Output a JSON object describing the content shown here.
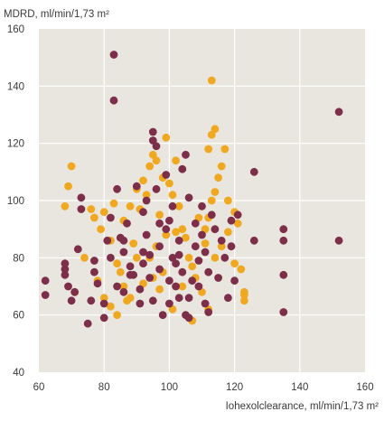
{
  "chart_data": {
    "type": "scatter",
    "title": "",
    "ylabel": "MDRD, ml/min/1,73 m²",
    "xlabel": "Iohexolclearance, ml/min/1,73 m²",
    "xlim": [
      60,
      160
    ],
    "ylim": [
      40,
      160
    ],
    "x_ticks": [
      "60",
      "80",
      "100",
      "120",
      "140",
      "160"
    ],
    "y_ticks": [
      "40",
      "60",
      "80",
      "100",
      "120",
      "140",
      "160"
    ],
    "grid": true,
    "background_color": "#e9e6df",
    "grid_color": "#ffffff",
    "series": [
      {
        "color": "#f0a820",
        "points": [
          [
            68,
            98
          ],
          [
            69,
            105
          ],
          [
            70,
            112
          ],
          [
            71,
            68
          ],
          [
            74,
            80
          ],
          [
            76,
            97
          ],
          [
            77,
            94
          ],
          [
            79,
            90
          ],
          [
            80,
            96
          ],
          [
            82,
            86
          ],
          [
            83,
            99
          ],
          [
            84,
            78
          ],
          [
            85,
            75
          ],
          [
            86,
            70
          ],
          [
            87,
            65
          ],
          [
            89,
            85
          ],
          [
            90,
            80
          ],
          [
            91,
            97
          ],
          [
            92,
            107
          ],
          [
            93,
            102
          ],
          [
            94,
            112
          ],
          [
            95,
            116
          ],
          [
            96,
            114
          ],
          [
            97,
            95
          ],
          [
            98,
            108
          ],
          [
            99,
            122
          ],
          [
            100,
            106
          ],
          [
            101,
            102
          ],
          [
            102,
            114
          ],
          [
            103,
            98
          ],
          [
            104,
            90
          ],
          [
            105,
            87
          ],
          [
            106,
            80
          ],
          [
            107,
            77
          ],
          [
            108,
            73
          ],
          [
            110,
            68
          ],
          [
            111,
            85
          ],
          [
            112,
            94
          ],
          [
            113,
            100
          ],
          [
            114,
            103
          ],
          [
            115,
            108
          ],
          [
            116,
            112
          ],
          [
            117,
            118
          ],
          [
            112,
            118
          ],
          [
            113,
            123
          ],
          [
            114,
            125
          ],
          [
            113,
            142
          ],
          [
            118,
            100
          ],
          [
            120,
            96
          ],
          [
            121,
            92
          ],
          [
            122,
            76
          ],
          [
            123,
            68
          ],
          [
            123,
            67
          ],
          [
            123,
            65
          ],
          [
            120,
            78
          ],
          [
            112,
            62
          ],
          [
            107,
            58
          ],
          [
            101,
            62
          ],
          [
            97,
            69
          ],
          [
            92,
            71
          ],
          [
            88,
            66
          ],
          [
            84,
            60
          ],
          [
            82,
            63
          ],
          [
            80,
            66
          ],
          [
            78,
            72
          ],
          [
            94,
            80
          ],
          [
            96,
            84
          ],
          [
            99,
            88
          ],
          [
            102,
            89
          ],
          [
            109,
            94
          ],
          [
            111,
            90
          ],
          [
            98,
            75
          ],
          [
            95,
            73
          ],
          [
            104,
            70
          ],
          [
            114,
            80
          ],
          [
            116,
            84
          ],
          [
            118,
            89
          ],
          [
            86,
            93
          ],
          [
            88,
            98
          ],
          [
            90,
            104
          ]
        ]
      },
      {
        "color": "#7d2f4a",
        "points": [
          [
            62,
            72
          ],
          [
            62,
            67
          ],
          [
            68,
            76
          ],
          [
            68,
            78
          ],
          [
            68,
            74
          ],
          [
            69,
            70
          ],
          [
            70,
            65
          ],
          [
            71,
            68
          ],
          [
            72,
            83
          ],
          [
            73,
            101
          ],
          [
            73,
            97
          ],
          [
            75,
            57
          ],
          [
            76,
            65
          ],
          [
            77,
            79
          ],
          [
            77,
            75
          ],
          [
            78,
            71
          ],
          [
            80,
            59
          ],
          [
            80,
            64
          ],
          [
            81,
            86
          ],
          [
            82,
            80
          ],
          [
            83,
            151
          ],
          [
            83,
            135
          ],
          [
            84,
            104
          ],
          [
            84,
            70
          ],
          [
            85,
            87
          ],
          [
            86,
            82
          ],
          [
            86,
            68
          ],
          [
            87,
            92
          ],
          [
            88,
            77
          ],
          [
            89,
            74
          ],
          [
            90,
            105
          ],
          [
            91,
            69
          ],
          [
            91,
            64
          ],
          [
            92,
            96
          ],
          [
            92,
            78
          ],
          [
            93,
            100
          ],
          [
            93,
            88
          ],
          [
            94,
            73
          ],
          [
            95,
            124
          ],
          [
            95,
            121
          ],
          [
            96,
            119
          ],
          [
            96,
            104
          ],
          [
            97,
            84
          ],
          [
            97,
            76
          ],
          [
            98,
            60
          ],
          [
            99,
            109
          ],
          [
            99,
            90
          ],
          [
            100,
            93
          ],
          [
            100,
            72
          ],
          [
            101,
            98
          ],
          [
            101,
            80
          ],
          [
            102,
            78
          ],
          [
            102,
            70
          ],
          [
            103,
            86
          ],
          [
            103,
            66
          ],
          [
            104,
            111
          ],
          [
            104,
            75
          ],
          [
            105,
            116
          ],
          [
            105,
            60
          ],
          [
            106,
            101
          ],
          [
            106,
            59
          ],
          [
            107,
            72
          ],
          [
            108,
            92
          ],
          [
            108,
            84
          ],
          [
            109,
            79
          ],
          [
            109,
            70
          ],
          [
            110,
            98
          ],
          [
            110,
            88
          ],
          [
            111,
            82
          ],
          [
            111,
            64
          ],
          [
            112,
            75
          ],
          [
            112,
            61
          ],
          [
            113,
            95
          ],
          [
            114,
            90
          ],
          [
            115,
            73
          ],
          [
            116,
            86
          ],
          [
            117,
            80
          ],
          [
            118,
            66
          ],
          [
            119,
            93
          ],
          [
            119,
            84
          ],
          [
            120,
            72
          ],
          [
            121,
            95
          ],
          [
            126,
            110
          ],
          [
            126,
            86
          ],
          [
            135,
            90
          ],
          [
            135,
            86
          ],
          [
            135,
            74
          ],
          [
            135,
            61
          ],
          [
            152,
            131
          ],
          [
            152,
            86
          ],
          [
            94,
            81
          ],
          [
            97,
            92
          ],
          [
            103,
            81
          ],
          [
            106,
            66
          ],
          [
            100,
            64
          ],
          [
            95,
            65
          ],
          [
            92,
            82
          ],
          [
            88,
            74
          ],
          [
            86,
            86
          ],
          [
            82,
            94
          ]
        ]
      }
    ]
  }
}
